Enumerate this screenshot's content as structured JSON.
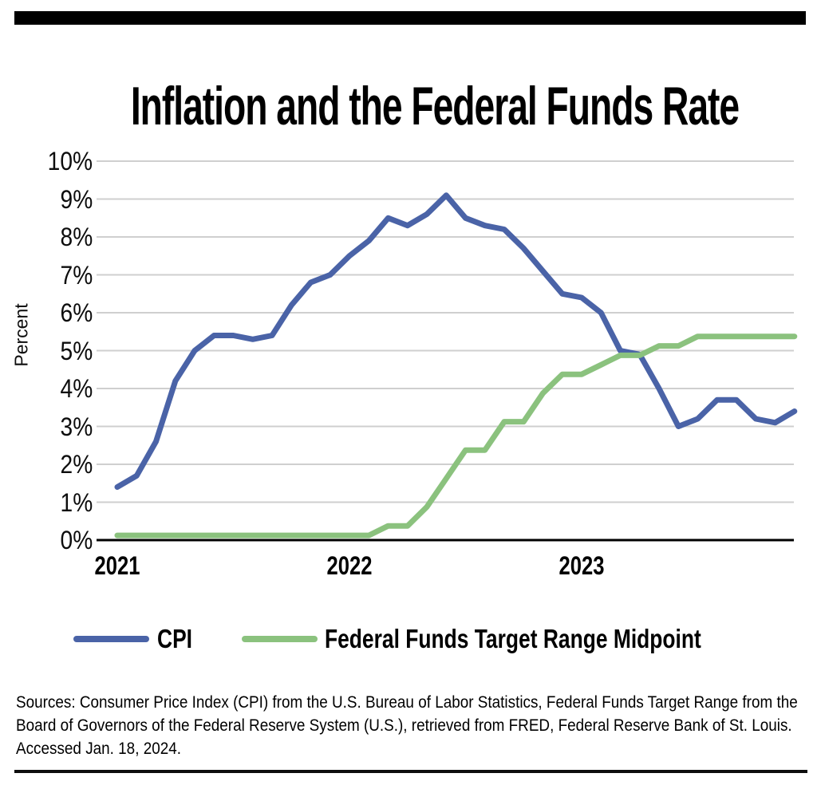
{
  "title": "Inflation and the Federal Funds Rate",
  "chart": {
    "ylabel": "Percent",
    "y_ticks": [
      {
        "label": "10%",
        "value": 10
      },
      {
        "label": "9%",
        "value": 9
      },
      {
        "label": "8%",
        "value": 8
      },
      {
        "label": "7%",
        "value": 7
      },
      {
        "label": "6%",
        "value": 6
      },
      {
        "label": "5%",
        "value": 5
      },
      {
        "label": "4%",
        "value": 4
      },
      {
        "label": "3%",
        "value": 3
      },
      {
        "label": "2%",
        "value": 2
      },
      {
        "label": "1%",
        "value": 1
      },
      {
        "label": "0%",
        "value": 0
      }
    ],
    "x_ticks": [
      {
        "label": "2021",
        "month_index": 0
      },
      {
        "label": "2022",
        "month_index": 12
      },
      {
        "label": "2023",
        "month_index": 24
      }
    ]
  },
  "legend": {
    "items": [
      {
        "label": "CPI",
        "color": "#4a63a7"
      },
      {
        "label": "Federal Funds Target Range Midpoint",
        "color": "#8bc27e"
      }
    ]
  },
  "sources": {
    "line1": "Sources: Consumer Price Index (CPI) from the U.S. Bureau of Labor Statistics, Federal Funds Target Range from the",
    "line2": "Board of Governors of the Federal Reserve System (U.S.), retrieved from FRED, Federal Reserve Bank of St. Louis.",
    "line3": "Accessed Jan. 18, 2024."
  },
  "colors": {
    "cpi_line": "#4a63a7",
    "fed_funds_line": "#8bc27e",
    "gridline": "#cfcfcf",
    "axis": "#000000",
    "text": "#000000"
  },
  "chart_data": {
    "type": "line",
    "title": "Inflation and the Federal Funds Rate",
    "ylabel": "Percent",
    "ylim": [
      0,
      10
    ],
    "grid": true,
    "legend_position": "bottom",
    "x_tick_labels": [
      "2021",
      "2022",
      "2023"
    ],
    "x": [
      "2021-01",
      "2021-02",
      "2021-03",
      "2021-04",
      "2021-05",
      "2021-06",
      "2021-07",
      "2021-08",
      "2021-09",
      "2021-10",
      "2021-11",
      "2021-12",
      "2022-01",
      "2022-02",
      "2022-03",
      "2022-04",
      "2022-05",
      "2022-06",
      "2022-07",
      "2022-08",
      "2022-09",
      "2022-10",
      "2022-11",
      "2022-12",
      "2023-01",
      "2023-02",
      "2023-03",
      "2023-04",
      "2023-05",
      "2023-06",
      "2023-07",
      "2023-08",
      "2023-09",
      "2023-10",
      "2023-11",
      "2023-12"
    ],
    "series": [
      {
        "name": "CPI",
        "color": "#4a63a7",
        "values": [
          1.4,
          1.7,
          2.6,
          4.2,
          5.0,
          5.4,
          5.4,
          5.3,
          5.4,
          6.2,
          6.8,
          7.0,
          7.5,
          7.9,
          8.5,
          8.3,
          8.6,
          9.1,
          8.5,
          8.3,
          8.2,
          7.7,
          7.1,
          6.5,
          6.4,
          6.0,
          5.0,
          4.9,
          4.0,
          3.0,
          3.2,
          3.7,
          3.7,
          3.2,
          3.1,
          3.4
        ]
      },
      {
        "name": "Federal Funds Target Range Midpoint",
        "color": "#8bc27e",
        "values": [
          0.125,
          0.125,
          0.125,
          0.125,
          0.125,
          0.125,
          0.125,
          0.125,
          0.125,
          0.125,
          0.125,
          0.125,
          0.125,
          0.125,
          0.375,
          0.375,
          0.875,
          1.625,
          2.375,
          2.375,
          3.125,
          3.125,
          3.875,
          4.375,
          4.375,
          4.625,
          4.875,
          4.875,
          5.125,
          5.125,
          5.375,
          5.375,
          5.375,
          5.375,
          5.375,
          5.375
        ]
      }
    ]
  }
}
